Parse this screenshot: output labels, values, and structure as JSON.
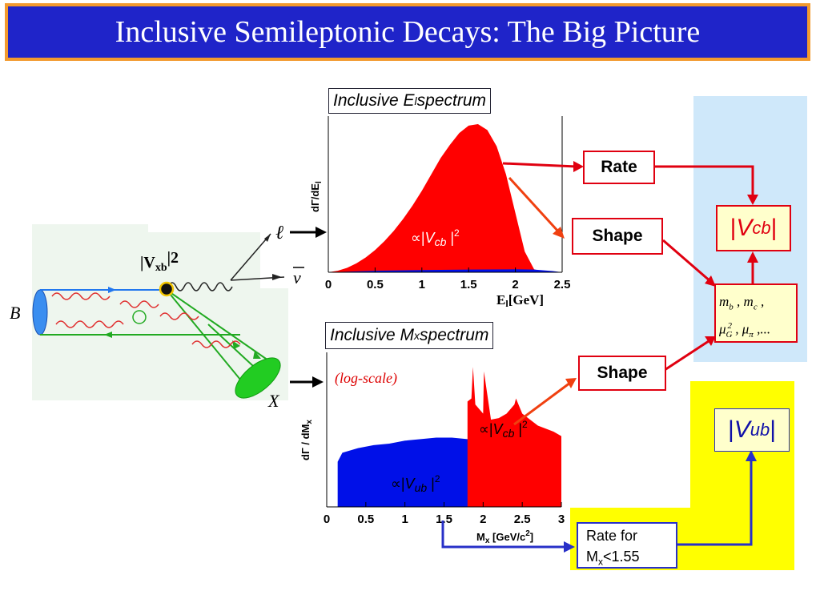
{
  "title": "Inclusive Semileptonic Decays: The Big Picture",
  "feynman": {
    "vxb_label": "|V",
    "vxb_sub": "xb",
    "vxb_sup": "|2",
    "b_label": "B",
    "x_label": "X",
    "lepton_label": "ℓ",
    "nu_label": "ν"
  },
  "el_panel": {
    "title_main": "Inclusive E",
    "title_sub": "l",
    "title_end": " spectrum",
    "ylabel": "dΓ/dE",
    "ylabel_sub": "l",
    "xlabel": "E",
    "xlabel_sub": "l",
    "xlabel_unit": "[GeV]",
    "annotation_prop": "∝|",
    "annotation_v": "V",
    "annotation_sub": "cb",
    "annotation_end": " |",
    "annotation_sup": "2"
  },
  "mx_panel": {
    "title_main": "Inclusive M",
    "title_sub": "x",
    "title_end": " spectrum",
    "note": "(log-scale)",
    "ylabel": "dΓ / dM",
    "ylabel_sub": "x",
    "xlabel": "M",
    "xlabel_sub": "x",
    "xlabel_unit": " [GeV/c",
    "xlabel_sup": "2",
    "xlabel_close": "]",
    "vcb_prop": "∝|",
    "vcb_v": "V",
    "vcb_sub": "cb",
    "vcb_end": " |",
    "vcb_sup": "2",
    "vub_prop": "∝|",
    "vub_v": "V",
    "vub_sub": "ub",
    "vub_end": " |",
    "vub_sup": "2"
  },
  "boxes": {
    "rate": "Rate",
    "shape_top": "Shape",
    "shape_bottom": "Shape",
    "vcb_bar": "|",
    "vcb_v": "V",
    "vcb_sub": "cb",
    "vcb_end": " |",
    "vub_bar": "|",
    "vub_v": "V",
    "vub_sub": "ub",
    "vub_end": " |",
    "params_line1": "m",
    "params_b": "b",
    "params_comma": " , m",
    "params_c": "c",
    "params_end": " ,",
    "params_mu": "μ",
    "params_G": "G",
    "params_two": "2",
    "params_mid": " , μ",
    "params_pi": "π",
    "params_tail": " ,...",
    "rate_for_line1": "Rate for",
    "rate_for_m": "M",
    "rate_for_sub": "x",
    "rate_for_tail": "<1.55"
  },
  "colors": {
    "title_bg": "#1f24c9",
    "title_border": "#f29a2e",
    "red": "#ff0000",
    "blue": "#0010e8",
    "light_blue": "#cfe8fa",
    "yellow": "#ffff00",
    "param_bg": "#ffffcc"
  },
  "chart_data": [
    {
      "type": "area",
      "xlabel": "E_l [GeV]",
      "ylabel": "dΓ/dE_l",
      "xlim": [
        0,
        2.5
      ],
      "x_ticks": [
        "0",
        "0.5",
        "1",
        "1.5",
        "2",
        "2.5"
      ],
      "series": [
        {
          "name": "b→c",
          "x": [
            0,
            0.1,
            0.2,
            0.3,
            0.4,
            0.5,
            0.6,
            0.7,
            0.8,
            0.9,
            1.0,
            1.1,
            1.2,
            1.3,
            1.4,
            1.5,
            1.6,
            1.7,
            1.8,
            1.9,
            2.0,
            2.1,
            2.2,
            2.3,
            2.4,
            2.5
          ],
          "y": [
            0.0,
            0.01,
            0.03,
            0.06,
            0.1,
            0.15,
            0.21,
            0.28,
            0.36,
            0.45,
            0.55,
            0.66,
            0.77,
            0.86,
            0.94,
            0.99,
            1.0,
            0.96,
            0.85,
            0.66,
            0.4,
            0.14,
            0.02,
            0.0,
            0.0,
            0.0
          ]
        },
        {
          "name": "b→u",
          "x": [
            0,
            0.5,
            1.0,
            1.5,
            2.0,
            2.2,
            2.4,
            2.5
          ],
          "y": [
            0.0,
            0.01,
            0.015,
            0.018,
            0.02,
            0.018,
            0.008,
            0.0
          ]
        }
      ]
    },
    {
      "type": "area",
      "log_scale": true,
      "xlabel": "M_x [GeV/c^2]",
      "ylabel": "dΓ / dM_x",
      "xlim": [
        0,
        3
      ],
      "x_ticks": [
        "0",
        "0.5",
        "1",
        "1.5",
        "2",
        "2.5",
        "3"
      ],
      "series": [
        {
          "name": "b→u",
          "x": [
            0.14,
            0.2,
            0.4,
            0.6,
            0.8,
            1.0,
            1.2,
            1.4,
            1.6,
            1.8,
            2.0,
            2.2,
            2.4,
            2.6,
            2.8,
            3.0
          ],
          "y": [
            0.3,
            0.36,
            0.39,
            0.41,
            0.42,
            0.44,
            0.45,
            0.46,
            0.46,
            0.45,
            0.44,
            0.42,
            0.41,
            0.4,
            0.38,
            0.36
          ]
        },
        {
          "name": "b→c",
          "x": [
            1.8,
            1.85,
            1.87,
            1.9,
            2.0,
            2.01,
            2.1,
            2.2,
            2.3,
            2.4,
            2.42,
            2.5,
            2.6,
            2.7,
            2.8,
            2.9,
            3.0
          ],
          "y": [
            0.7,
            0.72,
            0.93,
            0.68,
            0.62,
            0.9,
            0.58,
            0.59,
            0.62,
            0.68,
            0.72,
            0.62,
            0.58,
            0.54,
            0.52,
            0.5,
            0.47
          ]
        }
      ]
    }
  ]
}
